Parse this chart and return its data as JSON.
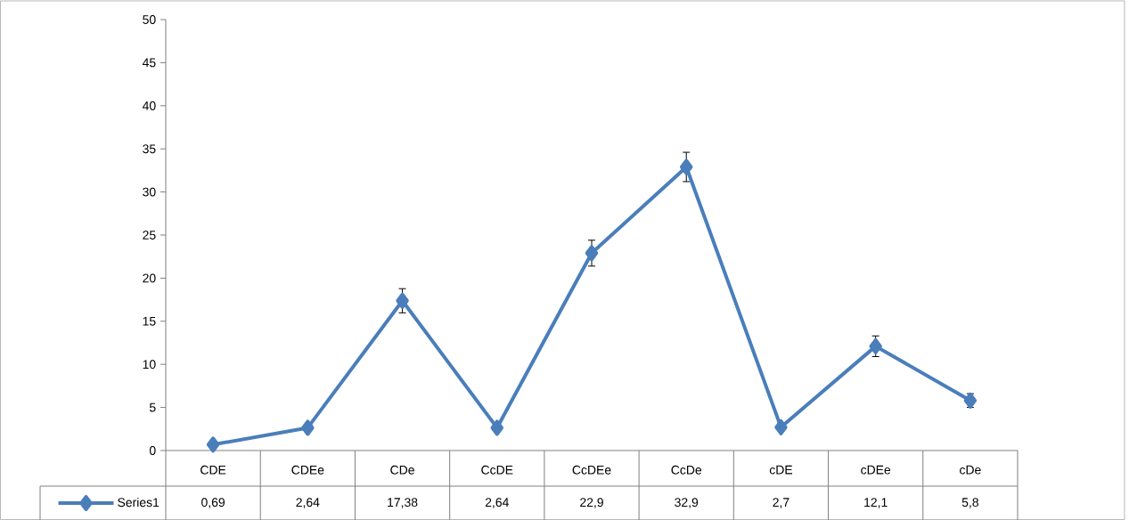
{
  "chart_data": {
    "type": "line",
    "categories": [
      "CDE",
      "CDEe",
      "CDe",
      "CcDE",
      "CcDEe",
      "CcDe",
      "cDE",
      "cDEe",
      "cDe"
    ],
    "series": [
      {
        "name": "Series1",
        "color": "#4a7ebb",
        "values": [
          0.69,
          2.64,
          17.38,
          2.64,
          22.9,
          32.9,
          2.7,
          12.1,
          5.8
        ],
        "errors": [
          null,
          null,
          1.4,
          null,
          1.5,
          1.7,
          null,
          1.2,
          0.8
        ],
        "value_labels": [
          "0,69",
          "2,64",
          "17,38",
          "2,64",
          "22,9",
          "32,9",
          "2,7",
          "12,1",
          "5,8"
        ]
      }
    ],
    "ylim": [
      0,
      50
    ],
    "yticks": [
      0,
      5,
      10,
      15,
      20,
      25,
      30,
      35,
      40,
      45,
      50
    ],
    "marker": "diamond",
    "line_style": "solid",
    "legend": "bottom",
    "grid": false
  }
}
